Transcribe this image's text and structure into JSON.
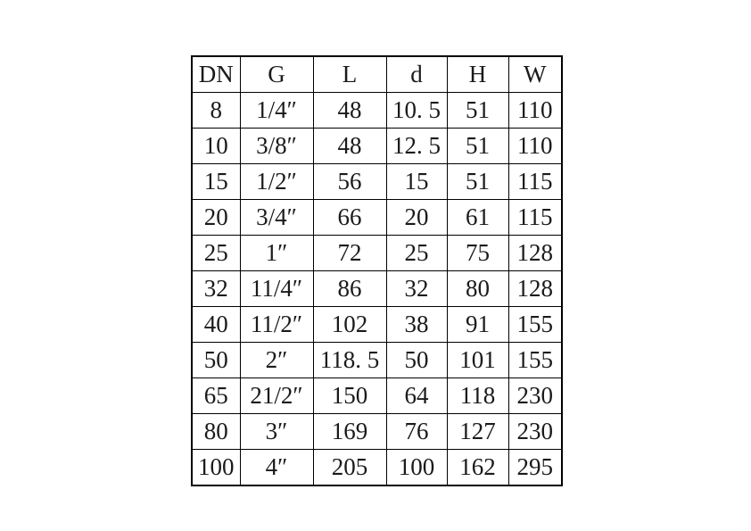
{
  "table": {
    "headers": [
      "DN",
      "G",
      "L",
      "d",
      "H",
      "W"
    ],
    "rows": [
      [
        "8",
        "1/4″",
        "48",
        "10. 5",
        "51",
        "110"
      ],
      [
        "10",
        "3/8″",
        "48",
        "12. 5",
        "51",
        "110"
      ],
      [
        "15",
        "1/2″",
        "56",
        "15",
        "51",
        "115"
      ],
      [
        "20",
        "3/4″",
        "66",
        "20",
        "61",
        "115"
      ],
      [
        "25",
        "1″",
        "72",
        "25",
        "75",
        "128"
      ],
      [
        "32",
        "11/4″",
        "86",
        "32",
        "80",
        "128"
      ],
      [
        "40",
        "11/2″",
        "102",
        "38",
        "91",
        "155"
      ],
      [
        "50",
        "2″",
        "118. 5",
        "50",
        "101",
        "155"
      ],
      [
        "65",
        "21/2″",
        "150",
        "64",
        "118",
        "230"
      ],
      [
        "80",
        "3″",
        "169",
        "76",
        "127",
        "230"
      ],
      [
        "100",
        "4″",
        "205",
        "100",
        "162",
        "295"
      ]
    ]
  },
  "colors": {
    "background": "#ffffff",
    "border": "#000000",
    "text": "#1a1a1a"
  }
}
